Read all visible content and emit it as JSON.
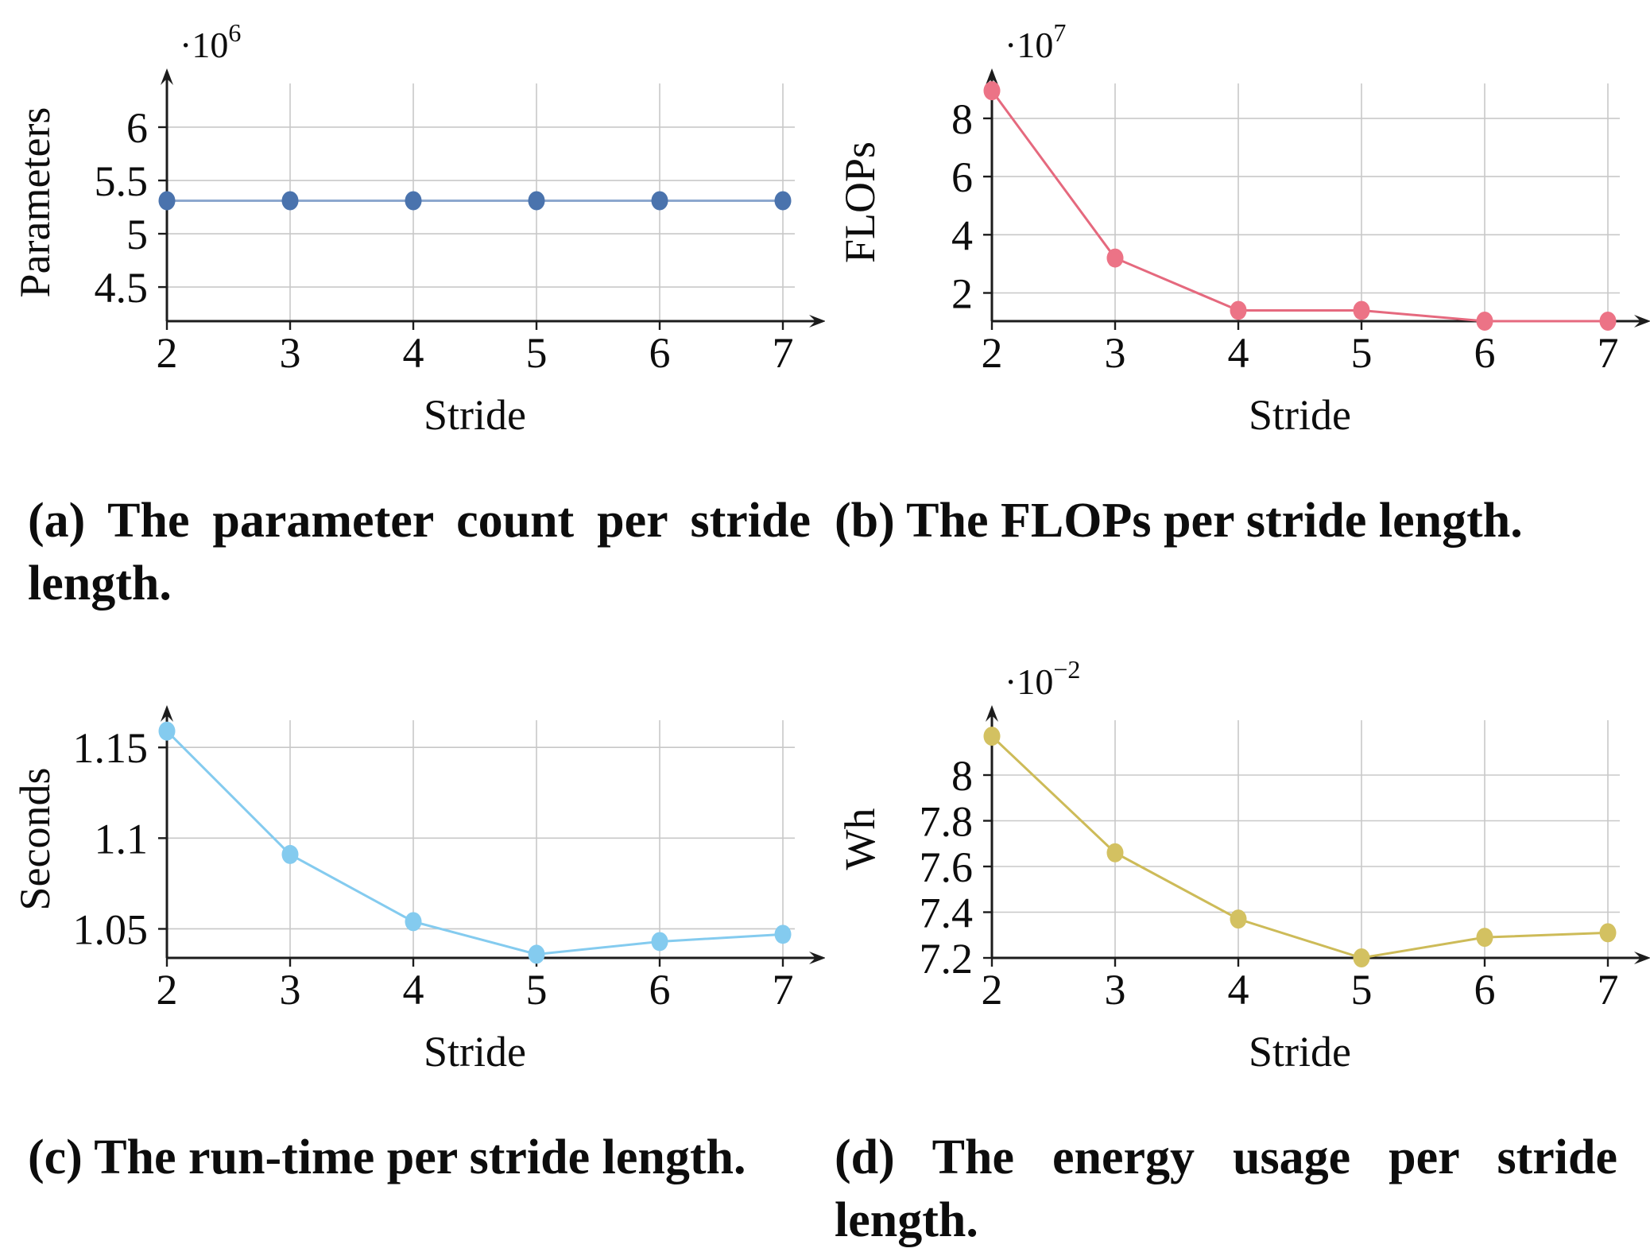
{
  "figure": {
    "captions": [
      "(a) The parameter count per stride length.",
      "(b) The FLOPs per stride length.",
      "(c) The run-time per stride length.",
      "(d) The energy usage per stride length."
    ]
  },
  "style": {
    "axis_color": "#1c1c1c",
    "grid_color": "#c8c8c8",
    "text_color": "#0d0d0d",
    "background": "#ffffff"
  },
  "chart_data": [
    {
      "id": "a",
      "type": "line",
      "xlabel": "Stride",
      "ylabel": "Parameters",
      "exponent_label": "·10",
      "exponent_sup": "6",
      "x": [
        2,
        3,
        4,
        5,
        6,
        7
      ],
      "xtick_labels": [
        "2",
        "3",
        "4",
        "5",
        "6",
        "7"
      ],
      "values": [
        5.31,
        5.31,
        5.31,
        5.31,
        5.31,
        5.31
      ],
      "ylim": [
        4.18,
        6.41
      ],
      "yticks": [
        4.5,
        5,
        5.5,
        6
      ],
      "ytick_labels": [
        "4.5",
        "5",
        "5.5",
        "6"
      ],
      "grid": true,
      "legend": null,
      "line_color": "#8ca7ce",
      "marker_color": "#4a73ad"
    },
    {
      "id": "b",
      "type": "line",
      "xlabel": "Stride",
      "ylabel": "FLOPs",
      "exponent_label": "·10",
      "exponent_sup": "7",
      "x": [
        2,
        3,
        4,
        5,
        6,
        7
      ],
      "xtick_labels": [
        "2",
        "3",
        "4",
        "5",
        "6",
        "7"
      ],
      "values": [
        8.95,
        3.2,
        1.4,
        1.4,
        1.03,
        1.03
      ],
      "ylim": [
        1.03,
        9.2
      ],
      "yticks": [
        2,
        4,
        6,
        8
      ],
      "ytick_labels": [
        "2",
        "4",
        "6",
        "8"
      ],
      "grid": true,
      "legend": null,
      "line_color": "#e5697e",
      "marker_color": "#ec7386"
    },
    {
      "id": "c",
      "type": "line",
      "xlabel": "Stride",
      "ylabel": "Seconds",
      "exponent_label": "",
      "exponent_sup": "",
      "x": [
        2,
        3,
        4,
        5,
        6,
        7
      ],
      "xtick_labels": [
        "2",
        "3",
        "4",
        "5",
        "6",
        "7"
      ],
      "values": [
        1.159,
        1.091,
        1.054,
        1.036,
        1.043,
        1.047
      ],
      "ylim": [
        1.034,
        1.165
      ],
      "yticks": [
        1.05,
        1.1,
        1.15
      ],
      "ytick_labels": [
        "1.05",
        "1.1",
        "1.15"
      ],
      "grid": true,
      "legend": null,
      "line_color": "#84cbef",
      "marker_color": "#84cbef"
    },
    {
      "id": "d",
      "type": "line",
      "xlabel": "Stride",
      "ylabel": "Wh",
      "exponent_label": "·10",
      "exponent_sup": "−2",
      "x": [
        2,
        3,
        4,
        5,
        6,
        7
      ],
      "xtick_labels": [
        "2",
        "3",
        "4",
        "5",
        "6",
        "7"
      ],
      "values": [
        8.17,
        7.66,
        7.37,
        7.2,
        7.29,
        7.31
      ],
      "ylim": [
        7.2,
        8.24
      ],
      "yticks": [
        7.2,
        7.4,
        7.6,
        7.8,
        8
      ],
      "ytick_labels": [
        "7.2",
        "7.4",
        "7.6",
        "7.8",
        "8"
      ],
      "grid": true,
      "legend": null,
      "line_color": "#cdbb58",
      "marker_color": "#d3c161"
    }
  ]
}
